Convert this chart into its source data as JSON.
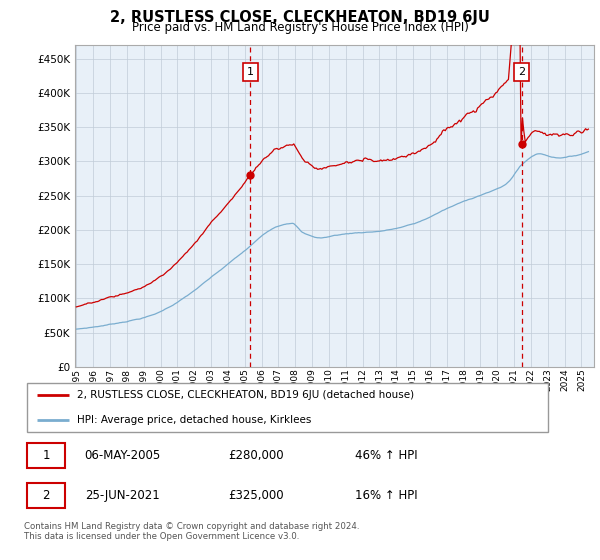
{
  "title": "2, RUSTLESS CLOSE, CLECKHEATON, BD19 6JU",
  "subtitle": "Price paid vs. HM Land Registry's House Price Index (HPI)",
  "sale1_price": 280000,
  "sale1_t": 2005.333,
  "sale2_price": 325000,
  "sale2_t": 2021.458,
  "legend_property": "2, RUSTLESS CLOSE, CLECKHEATON, BD19 6JU (detached house)",
  "legend_hpi": "HPI: Average price, detached house, Kirklees",
  "table_row1": [
    "1",
    "06-MAY-2005",
    "£280,000",
    "46% ↑ HPI"
  ],
  "table_row2": [
    "2",
    "25-JUN-2021",
    "£325,000",
    "16% ↑ HPI"
  ],
  "footnote": "Contains HM Land Registry data © Crown copyright and database right 2024.\nThis data is licensed under the Open Government Licence v3.0.",
  "property_color": "#cc0000",
  "hpi_color": "#7aadcf",
  "vline_color": "#cc0000",
  "plot_bg": "#e8f0f8",
  "grid_color": "#c0ccd8",
  "yticks": [
    0,
    50000,
    100000,
    150000,
    200000,
    250000,
    300000,
    350000,
    400000,
    450000
  ],
  "ylim": [
    0,
    470000
  ],
  "background_color": "#ffffff"
}
